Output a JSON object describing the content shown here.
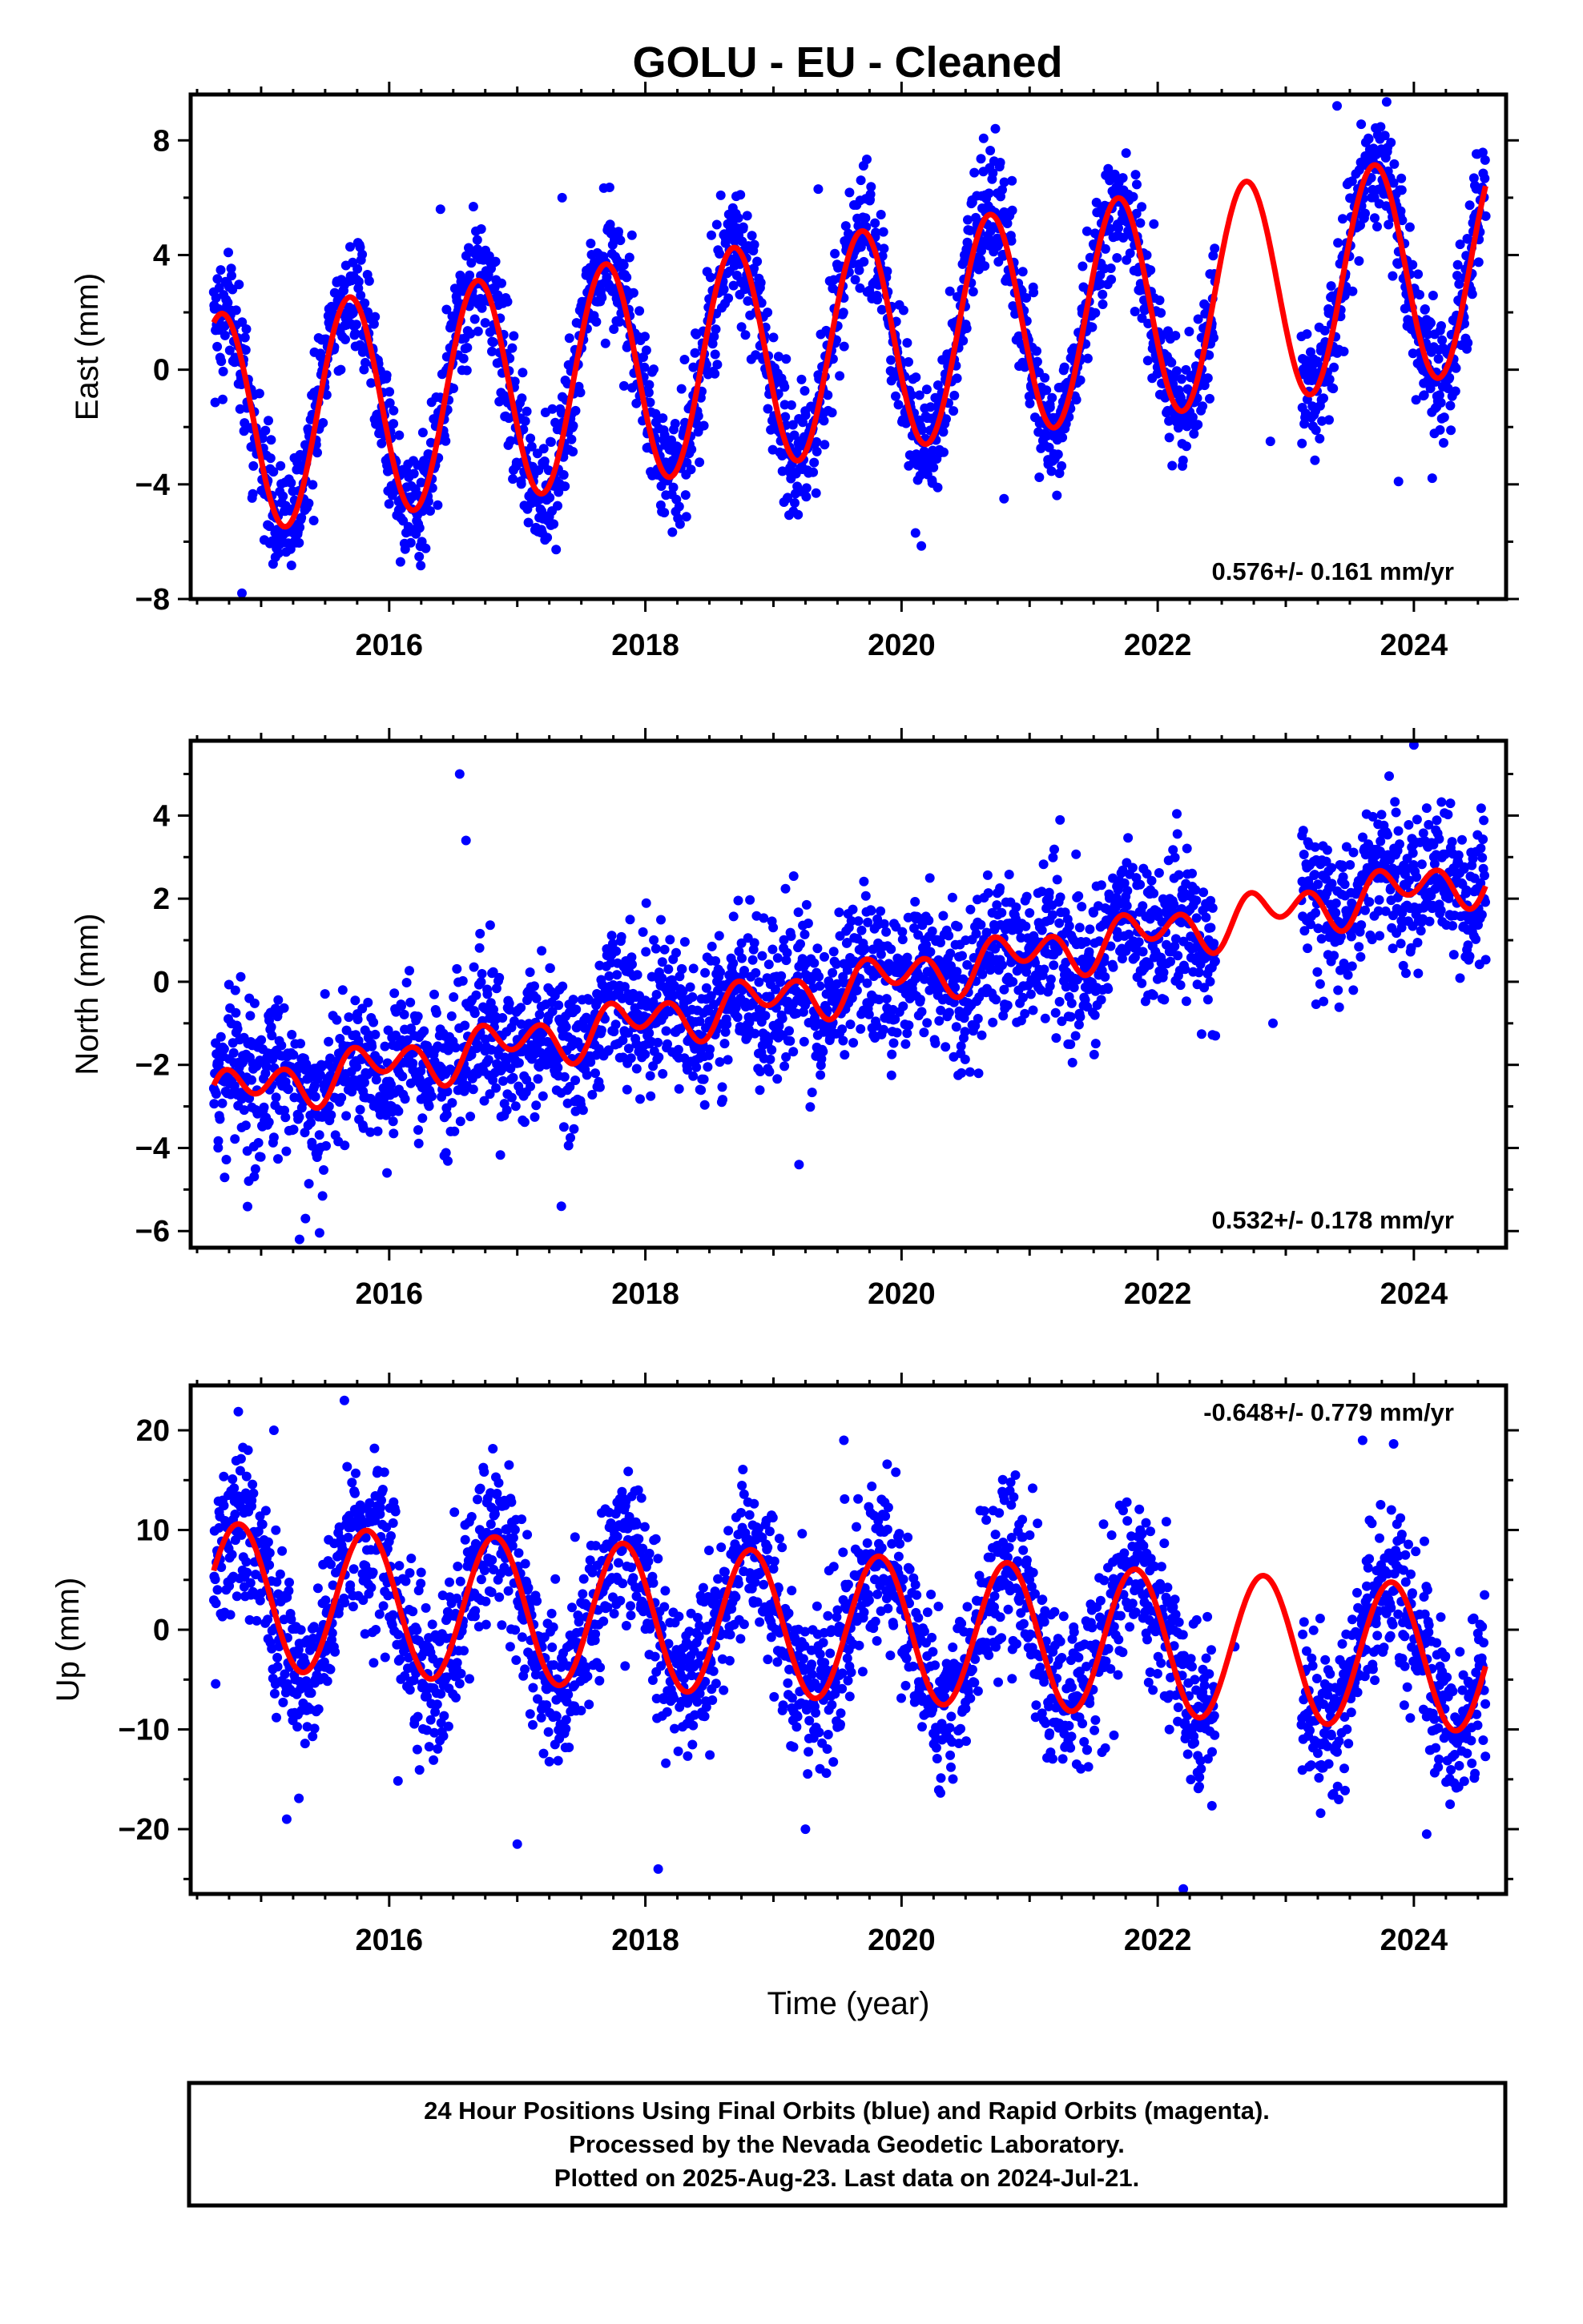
{
  "title": "GOLU  - EU - Cleaned",
  "colors": {
    "points": "#0000ff",
    "fit": "#ff0000",
    "frame": "#000000"
  },
  "chart_data": [
    {
      "type": "scatter",
      "ylabel": "East (mm)",
      "xlim": [
        2014.45,
        2024.72
      ],
      "ylim": [
        -8,
        9.6
      ],
      "yticks": [
        -8,
        -4,
        0,
        4,
        8
      ],
      "xticks": [
        2016,
        2018,
        2020,
        2022,
        2024
      ],
      "rate_label": "0.576+/- 0.161 mm/yr",
      "rate_position": "bottom-right",
      "model": {
        "t0": 2014.7,
        "offset": -1.9,
        "rate": 0.576,
        "ann_cos": -1.4,
        "ann_sin": -3.6,
        "semi_cos": 0.0,
        "semi_sin": 0.0
      },
      "noise_sd": 1.1,
      "outlier_points": [
        [
          2014.85,
          -7.8
        ],
        [
          2023.4,
          9.2
        ],
        [
          2016.4,
          5.6
        ],
        [
          2019.35,
          6.3
        ],
        [
          2017.35,
          6.0
        ],
        [
          2023.88,
          -3.9
        ],
        [
          2020.8,
          -4.5
        ],
        [
          2022.88,
          -2.5
        ]
      ],
      "series": [
        {
          "name": "",
          "color": "#0000ff",
          "x_start": 2014.63,
          "x_end": 2024.56,
          "gaps": [
            [
              2022.45,
              2023.12
            ]
          ],
          "n_points": 2700
        }
      ]
    },
    {
      "type": "scatter",
      "ylabel": "North (mm)",
      "xlim": [
        2014.45,
        2024.72
      ],
      "ylim": [
        -6.4,
        5.8
      ],
      "yticks": [
        -6,
        -4,
        -2,
        0,
        2,
        4
      ],
      "xticks": [
        2016,
        2018,
        2020,
        2022,
        2024
      ],
      "rate_label": "0.532+/- 0.178 mm/yr",
      "rate_position": "bottom-right",
      "model": {
        "t0": 2014.7,
        "offset": -2.7,
        "rate": 0.532,
        "ann_cos": 0.25,
        "ann_sin": -0.2,
        "semi_cos": -0.35,
        "semi_sin": 0.25
      },
      "noise_sd": 0.9,
      "outlier_points": [
        [
          2016.55,
          5.0
        ],
        [
          2016.6,
          3.4
        ],
        [
          2019.2,
          -4.4
        ],
        [
          2024.0,
          5.7
        ],
        [
          2022.45,
          -1.3
        ],
        [
          2022.9,
          -1.0
        ],
        [
          2015.3,
          -6.2
        ]
      ],
      "series": [
        {
          "name": "",
          "color": "#0000ff",
          "x_start": 2014.63,
          "x_end": 2024.56,
          "gaps": [
            [
              2022.45,
              2023.12
            ]
          ],
          "n_points": 2700
        }
      ]
    },
    {
      "type": "scatter",
      "ylabel": "Up (mm)",
      "xlim": [
        2014.45,
        2024.72
      ],
      "ylim": [
        -26.5,
        24.5
      ],
      "yticks": [
        -20,
        -10,
        0,
        10,
        20
      ],
      "xticks": [
        2016,
        2018,
        2020,
        2022,
        2024
      ],
      "xlabel": "Time (year)",
      "rate_label": "-0.648+/- 0.779 mm/yr",
      "rate_position": "top-right",
      "model": {
        "t0": 2014.7,
        "offset": 3.4,
        "rate": -0.648,
        "ann_cos": 3.3,
        "ann_sin": -6.5,
        "semi_cos": 0.0,
        "semi_sin": 0.0
      },
      "noise_sd": 4.2,
      "outlier_points": [
        [
          2015.65,
          23.0
        ],
        [
          2022.2,
          -26.0
        ],
        [
          2018.1,
          -24.0
        ],
        [
          2017.0,
          -21.5
        ],
        [
          2024.1,
          -20.5
        ],
        [
          2015.2,
          -19.0
        ],
        [
          2019.25,
          -20.0
        ],
        [
          2023.6,
          19.0
        ],
        [
          2019.55,
          19.0
        ],
        [
          2015.1,
          20.0
        ]
      ],
      "series": [
        {
          "name": "",
          "color": "#0000ff",
          "x_start": 2014.63,
          "x_end": 2024.56,
          "gaps": [
            [
              2022.45,
              2023.12
            ]
          ],
          "n_points": 2700
        }
      ]
    }
  ],
  "footer": {
    "line1": "24 Hour Positions Using Final Orbits (blue) and Rapid Orbits (magenta).",
    "line2": "Processed by the Nevada Geodetic Laboratory.",
    "line3": "Plotted on 2025-Aug-23. Last data on 2024-Jul-21."
  }
}
